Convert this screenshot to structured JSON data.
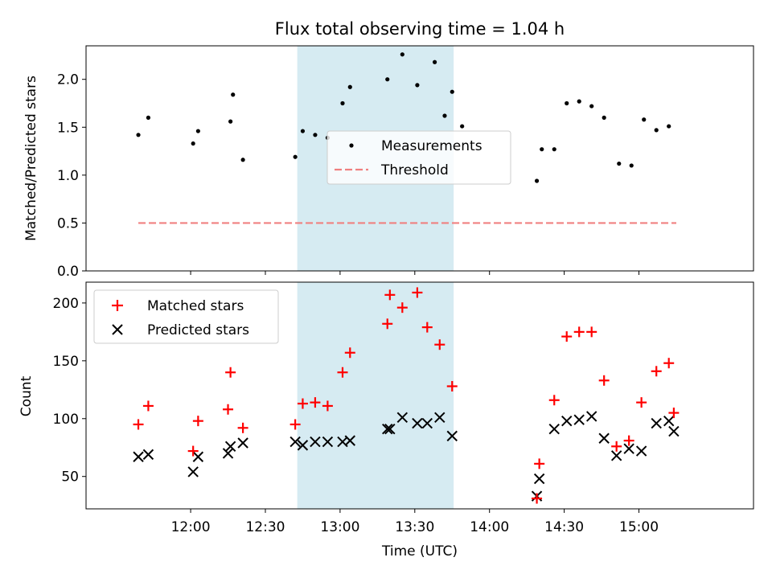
{
  "chart_data": {
    "type": "scatter",
    "title": "Flux total observing time = 1.04 h",
    "shared_x": {
      "label": "Time (UTC)",
      "unit": "minutes since 00:00 UTC",
      "range": [
        678,
        946
      ],
      "ticks": [
        720,
        750,
        780,
        810,
        840,
        870,
        900
      ],
      "tick_labels": [
        "12:00",
        "12:30",
        "13:00",
        "13:30",
        "14:00",
        "14:30",
        "15:00"
      ]
    },
    "highlight_span": {
      "x0": 762.8,
      "x1": 825.6,
      "color": "#add8e6"
    },
    "top": {
      "ylabel": "Matched/Predicted stars",
      "ylim": [
        0,
        2.35
      ],
      "yticks": [
        0,
        0.5,
        1.0,
        1.5,
        2.0
      ],
      "ytick_labels": [
        "0.0",
        "0.5",
        "1.0",
        "1.5",
        "2.0"
      ],
      "measurements": {
        "name": "Measurements",
        "x": [
          699,
          703,
          721,
          723,
          736,
          737,
          741,
          762,
          765,
          770,
          775,
          781,
          784,
          799,
          805,
          811,
          818,
          825,
          859,
          861,
          866,
          871,
          876,
          881,
          886,
          892,
          897,
          902,
          907,
          912
        ],
        "y": [
          1.42,
          1.6,
          1.33,
          1.46,
          1.56,
          1.84,
          1.16,
          1.19,
          1.46,
          1.42,
          1.39,
          1.75,
          1.92,
          2.0,
          2.26,
          1.94,
          2.18,
          1.87,
          0.94,
          1.27,
          1.27,
          1.75,
          1.77,
          1.72,
          1.6,
          1.12,
          1.1,
          1.58,
          1.47,
          1.51
        ]
      },
      "extra_measurements": {
        "x": [
          822,
          829
        ],
        "y": [
          1.62,
          1.51
        ]
      },
      "threshold": {
        "name": "Threshold",
        "value": 0.5,
        "x_range": [
          699,
          915
        ],
        "color": "#f08080"
      }
    },
    "bottom": {
      "ylabel": "Count",
      "ylim": [
        22,
        218
      ],
      "yticks": [
        50,
        100,
        150,
        200
      ],
      "ytick_labels": [
        "50",
        "100",
        "150",
        "200"
      ],
      "series": [
        {
          "name": "Matched stars",
          "marker": "plus",
          "color": "#ff0000",
          "x": [
            699,
            703,
            721,
            723,
            735,
            736,
            741,
            762,
            765,
            770,
            775,
            781,
            784,
            799,
            800,
            805,
            811,
            815,
            820,
            825,
            859,
            860,
            866,
            871,
            876,
            881,
            886,
            891,
            896,
            901,
            907,
            912,
            914
          ],
          "y": [
            95,
            111,
            72,
            98,
            108,
            140,
            92,
            95,
            113,
            114,
            111,
            140,
            157,
            182,
            207,
            196,
            209,
            179,
            164,
            128,
            31,
            61,
            116,
            171,
            175,
            175,
            133,
            76,
            81,
            114,
            141,
            148,
            105
          ]
        },
        {
          "name": "Predicted stars",
          "marker": "x",
          "color": "#000000",
          "x": [
            699,
            703,
            721,
            723,
            735,
            736,
            741,
            762,
            765,
            770,
            775,
            781,
            784,
            799,
            800,
            805,
            811,
            815,
            820,
            825,
            859,
            860,
            866,
            871,
            876,
            881,
            886,
            891,
            896,
            901,
            907,
            912,
            914
          ],
          "y": [
            67,
            69,
            54,
            67,
            70,
            76,
            79,
            80,
            77,
            80,
            80,
            80,
            81,
            91,
            91,
            101,
            96,
            96,
            101,
            85,
            33,
            48,
            91,
            98,
            99,
            102,
            83,
            68,
            74,
            72,
            96,
            98,
            89
          ]
        }
      ]
    }
  }
}
